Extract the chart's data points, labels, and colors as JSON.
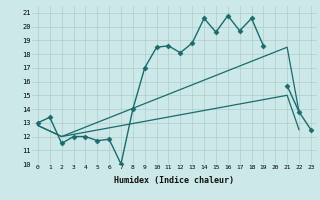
{
  "title": "",
  "xlabel": "Humidex (Indice chaleur)",
  "xlim": [
    -0.5,
    23.5
  ],
  "ylim": [
    10,
    21.5
  ],
  "yticks": [
    10,
    11,
    12,
    13,
    14,
    15,
    16,
    17,
    18,
    19,
    20,
    21
  ],
  "xticks": [
    0,
    1,
    2,
    3,
    4,
    5,
    6,
    7,
    8,
    9,
    10,
    11,
    12,
    13,
    14,
    15,
    16,
    17,
    18,
    19,
    20,
    21,
    22,
    23
  ],
  "bg_color": "#cce8e8",
  "grid_color": "#b0cccc",
  "line_color": "#1a6b6b",
  "series": [
    {
      "x": [
        0,
        1,
        2,
        3,
        4,
        5,
        6,
        7,
        8,
        9,
        10,
        11,
        12,
        13,
        14,
        15,
        16,
        17,
        18,
        19
      ],
      "y": [
        13.0,
        13.4,
        11.5,
        12.0,
        12.0,
        11.7,
        11.8,
        10.0,
        14.0,
        17.0,
        18.5,
        18.6,
        18.1,
        18.8,
        20.6,
        19.6,
        20.8,
        19.7,
        20.6,
        18.6
      ],
      "marker": "D",
      "markersize": 2.5,
      "linewidth": 1.0
    },
    {
      "x": [
        0,
        2,
        21,
        22
      ],
      "y": [
        12.8,
        12.0,
        15.0,
        12.5
      ],
      "marker": null,
      "markersize": 0,
      "linewidth": 0.9
    },
    {
      "x": [
        0,
        2,
        21,
        22
      ],
      "y": [
        12.8,
        12.0,
        18.5,
        13.8
      ],
      "marker": null,
      "markersize": 0,
      "linewidth": 0.9
    },
    {
      "x": [
        21,
        22,
        23
      ],
      "y": [
        15.7,
        13.8,
        12.5
      ],
      "marker": "D",
      "markersize": 2.5,
      "linewidth": 1.0
    }
  ]
}
